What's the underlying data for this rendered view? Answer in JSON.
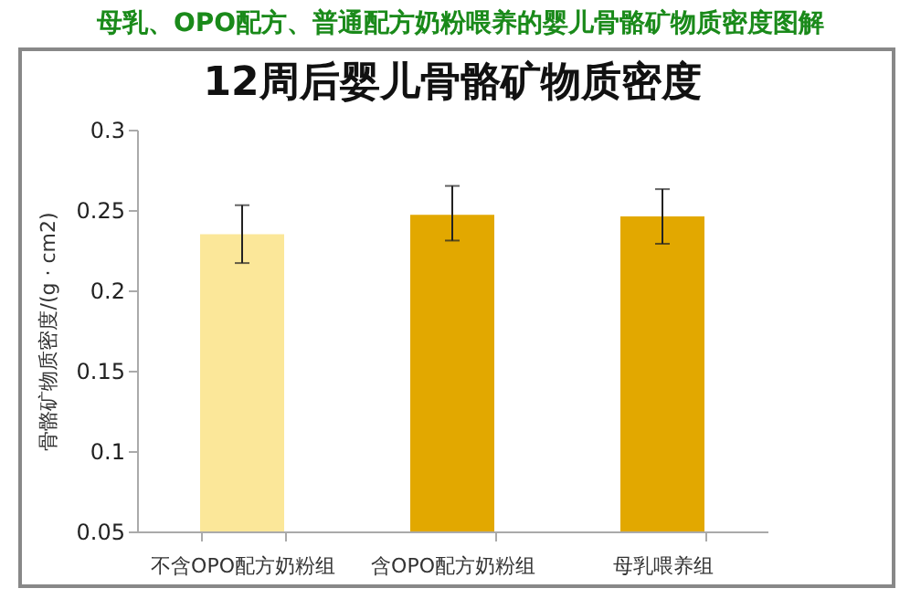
{
  "chart_data": {
    "type": "bar",
    "title": "母乳、OPO配方、普通配方奶粉喂养的婴儿骨骼矿物质密度图解",
    "subtitle": "12周后婴儿骨骼矿物质密度",
    "ylabel": "骨骼矿物质密度/(g · cm2)",
    "categories": [
      "不含OPO配方奶粉组",
      "含OPO配方奶粉组",
      "母乳喂养组"
    ],
    "values": [
      0.235,
      0.247,
      0.246
    ],
    "colors": [
      "#fbe799",
      "#e2a800",
      "#e2a800"
    ],
    "errors": [
      [
        0.217,
        0.253
      ],
      [
        0.231,
        0.265
      ],
      [
        0.229,
        0.263
      ]
    ],
    "ylim": [
      0.05,
      0.3
    ],
    "yticks": [
      0.05,
      0.1,
      0.15,
      0.2,
      0.25,
      0.3
    ]
  }
}
